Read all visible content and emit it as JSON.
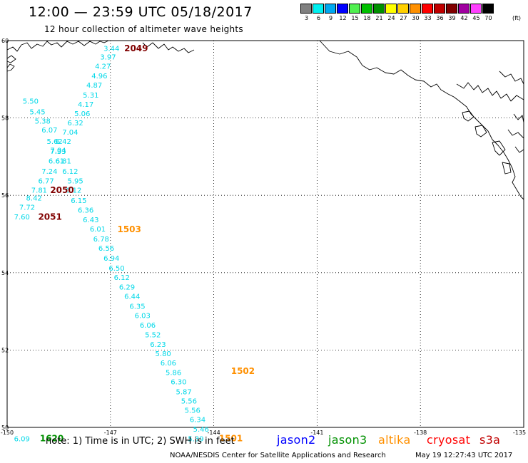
{
  "header": {
    "title": "12:00 — 23:59 UTC 05/18/2017",
    "subtitle": "12 hour collection of altimeter wave heights"
  },
  "legend": {
    "unit": "(ft)",
    "items": [
      {
        "label": "3",
        "color": "#808080"
      },
      {
        "label": "6",
        "color": "#00f0f0"
      },
      {
        "label": "9",
        "color": "#00a8f0"
      },
      {
        "label": "12",
        "color": "#0000ff"
      },
      {
        "label": "15",
        "color": "#50f050"
      },
      {
        "label": "18",
        "color": "#00c000"
      },
      {
        "label": "21",
        "color": "#009000"
      },
      {
        "label": "24",
        "color": "#ffff00"
      },
      {
        "label": "27",
        "color": "#ffd000"
      },
      {
        "label": "30",
        "color": "#ff9000"
      },
      {
        "label": "33",
        "color": "#ff0000"
      },
      {
        "label": "36",
        "color": "#c00000"
      },
      {
        "label": "39",
        "color": "#800000"
      },
      {
        "label": "42",
        "color": "#a000a0"
      },
      {
        "label": "45",
        "color": "#ff40ff"
      },
      {
        "label": "70",
        "color": "#000000"
      }
    ]
  },
  "map": {
    "lon_labels": [
      "-150",
      "-147",
      "-144",
      "-141",
      "-138",
      "-135"
    ],
    "lat_labels": [
      "60",
      "58",
      "56",
      "54",
      "52",
      "50"
    ]
  },
  "observations": [
    {
      "text": "3.44",
      "lon": -147.2,
      "lat": 59.73,
      "color": "#00d8e8"
    },
    {
      "text": "3.97",
      "lon": -147.3,
      "lat": 59.51,
      "color": "#00d8e8"
    },
    {
      "text": "4.27",
      "lon": -147.45,
      "lat": 59.27,
      "color": "#00d8e8"
    },
    {
      "text": "4.96",
      "lon": -147.55,
      "lat": 59.02,
      "color": "#00d8e8"
    },
    {
      "text": "4.87",
      "lon": -147.7,
      "lat": 58.78,
      "color": "#00d8e8"
    },
    {
      "text": "5.31",
      "lon": -147.8,
      "lat": 58.53,
      "color": "#00d8e8"
    },
    {
      "text": "4.17",
      "lon": -147.95,
      "lat": 58.29,
      "color": "#00d8e8"
    },
    {
      "text": "5.06",
      "lon": -148.05,
      "lat": 58.05,
      "color": "#00d8e8"
    },
    {
      "text": "5.50",
      "lon": -149.55,
      "lat": 58.37,
      "color": "#00d8e8"
    },
    {
      "text": "5.45",
      "lon": -149.35,
      "lat": 58.09,
      "color": "#00d8e8"
    },
    {
      "text": "5.38",
      "lon": -149.2,
      "lat": 57.85,
      "color": "#00d8e8"
    },
    {
      "text": "6.32",
      "lon": -148.25,
      "lat": 57.81,
      "color": "#00d8e8"
    },
    {
      "text": "6.07",
      "lon": -149.0,
      "lat": 57.62,
      "color": "#00d8e8"
    },
    {
      "text": "7.04",
      "lon": -148.4,
      "lat": 57.57,
      "color": "#00d8e8"
    },
    {
      "text": "5.62",
      "lon": -148.85,
      "lat": 57.33,
      "color": "#00d8e8"
    },
    {
      "text": "6.42",
      "lon": -148.6,
      "lat": 57.33,
      "color": "#00d8e8"
    },
    {
      "text": "7.04",
      "lon": -148.75,
      "lat": 57.1,
      "color": "#00d8e8"
    },
    {
      "text": "7.33",
      "lon": -148.75,
      "lat": 57.07,
      "color": "#00d8e8"
    },
    {
      "text": "6.61",
      "lon": -148.8,
      "lat": 56.82,
      "color": "#00d8e8"
    },
    {
      "text": "6.81",
      "lon": -148.6,
      "lat": 56.82,
      "color": "#00d8e8"
    },
    {
      "text": "7.24",
      "lon": -149.0,
      "lat": 56.56,
      "color": "#00d8e8"
    },
    {
      "text": "6.12",
      "lon": -148.4,
      "lat": 56.56,
      "color": "#00d8e8"
    },
    {
      "text": "6.77",
      "lon": -149.1,
      "lat": 56.31,
      "color": "#00d8e8"
    },
    {
      "text": "5.95",
      "lon": -148.25,
      "lat": 56.31,
      "color": "#00d8e8"
    },
    {
      "text": "7.81",
      "lon": -149.3,
      "lat": 56.07,
      "color": "#00d8e8"
    },
    {
      "text": "6.12",
      "lon": -148.3,
      "lat": 56.07,
      "color": "#00d8e8"
    },
    {
      "text": "8.42",
      "lon": -149.45,
      "lat": 55.87,
      "color": "#00d8e8"
    },
    {
      "text": "6.15",
      "lon": -148.15,
      "lat": 55.8,
      "color": "#00d8e8"
    },
    {
      "text": "7.72",
      "lon": -149.65,
      "lat": 55.63,
      "color": "#00d8e8"
    },
    {
      "text": "6.36",
      "lon": -147.95,
      "lat": 55.55,
      "color": "#00d8e8"
    },
    {
      "text": "7.60",
      "lon": -149.8,
      "lat": 55.38,
      "color": "#00d8e8"
    },
    {
      "text": "6.43",
      "lon": -147.8,
      "lat": 55.3,
      "color": "#00d8e8"
    },
    {
      "text": "6.01",
      "lon": -147.6,
      "lat": 55.06,
      "color": "#00d8e8"
    },
    {
      "text": "6.78",
      "lon": -147.5,
      "lat": 54.81,
      "color": "#00d8e8"
    },
    {
      "text": "6.56",
      "lon": -147.35,
      "lat": 54.57,
      "color": "#00d8e8"
    },
    {
      "text": "6.94",
      "lon": -147.2,
      "lat": 54.31,
      "color": "#00d8e8"
    },
    {
      "text": "6.50",
      "lon": -147.05,
      "lat": 54.05,
      "color": "#00d8e8"
    },
    {
      "text": "6.12",
      "lon": -146.9,
      "lat": 53.81,
      "color": "#00d8e8"
    },
    {
      "text": "6.29",
      "lon": -146.75,
      "lat": 53.56,
      "color": "#00d8e8"
    },
    {
      "text": "6.44",
      "lon": -146.6,
      "lat": 53.32,
      "color": "#00d8e8"
    },
    {
      "text": "6.35",
      "lon": -146.45,
      "lat": 53.07,
      "color": "#00d8e8"
    },
    {
      "text": "6.03",
      "lon": -146.3,
      "lat": 52.83,
      "color": "#00d8e8"
    },
    {
      "text": "6.06",
      "lon": -146.15,
      "lat": 52.58,
      "color": "#00d8e8"
    },
    {
      "text": "5.52",
      "lon": -146.0,
      "lat": 52.33,
      "color": "#00d8e8"
    },
    {
      "text": "6.23",
      "lon": -145.85,
      "lat": 52.08,
      "color": "#00d8e8"
    },
    {
      "text": "5.80",
      "lon": -145.7,
      "lat": 51.84,
      "color": "#00d8e8"
    },
    {
      "text": "6.06",
      "lon": -145.55,
      "lat": 51.6,
      "color": "#00d8e8"
    },
    {
      "text": "5.86",
      "lon": -145.4,
      "lat": 51.35,
      "color": "#00d8e8"
    },
    {
      "text": "6.30",
      "lon": -145.25,
      "lat": 51.11,
      "color": "#00d8e8"
    },
    {
      "text": "5.87",
      "lon": -145.1,
      "lat": 50.86,
      "color": "#00d8e8"
    },
    {
      "text": "5.56",
      "lon": -144.95,
      "lat": 50.62,
      "color": "#00d8e8"
    },
    {
      "text": "5.56",
      "lon": -144.85,
      "lat": 50.38,
      "color": "#00d8e8"
    },
    {
      "text": "6.34",
      "lon": -144.7,
      "lat": 50.14,
      "color": "#00d8e8"
    },
    {
      "text": "5.46",
      "lon": -144.6,
      "lat": 49.89,
      "color": "#00d8e8"
    },
    {
      "text": "5.39",
      "lon": -144.75,
      "lat": 49.64,
      "color": "#00d8e8"
    },
    {
      "text": "6.09",
      "lon": -149.8,
      "lat": 49.64,
      "color": "#00d8e8"
    }
  ],
  "time_labels": [
    {
      "text": "2049",
      "lon": -146.6,
      "lat": 59.72,
      "color": "#800000"
    },
    {
      "text": "2050",
      "lon": -148.75,
      "lat": 56.06,
      "color": "#800000"
    },
    {
      "text": "2051",
      "lon": -149.1,
      "lat": 55.37,
      "color": "#800000"
    },
    {
      "text": "1503",
      "lon": -146.8,
      "lat": 55.05,
      "color": "#ff9000"
    },
    {
      "text": "1502",
      "lon": -143.5,
      "lat": 51.38,
      "color": "#ff9000"
    },
    {
      "text": "1501",
      "lon": -143.85,
      "lat": 49.64,
      "color": "#ff9000"
    },
    {
      "text": "1620",
      "lon": -149.05,
      "lat": 49.64,
      "color": "#009000"
    }
  ],
  "note": "note:  1) Time is in UTC;  2) SWH is in feet",
  "satellites": [
    {
      "name": "jason2",
      "color": "#0000ff"
    },
    {
      "name": "jason3",
      "color": "#009000"
    },
    {
      "name": "altika",
      "color": "#ff9000"
    },
    {
      "name": "cryosat",
      "color": "#ff0000"
    },
    {
      "name": "s3a",
      "color": "#c00000"
    }
  ],
  "footer": {
    "left": "NOAA/NESDIS Center for Satellite Applications and Research",
    "right": "May 19 12:27:43 UTC 2017"
  }
}
